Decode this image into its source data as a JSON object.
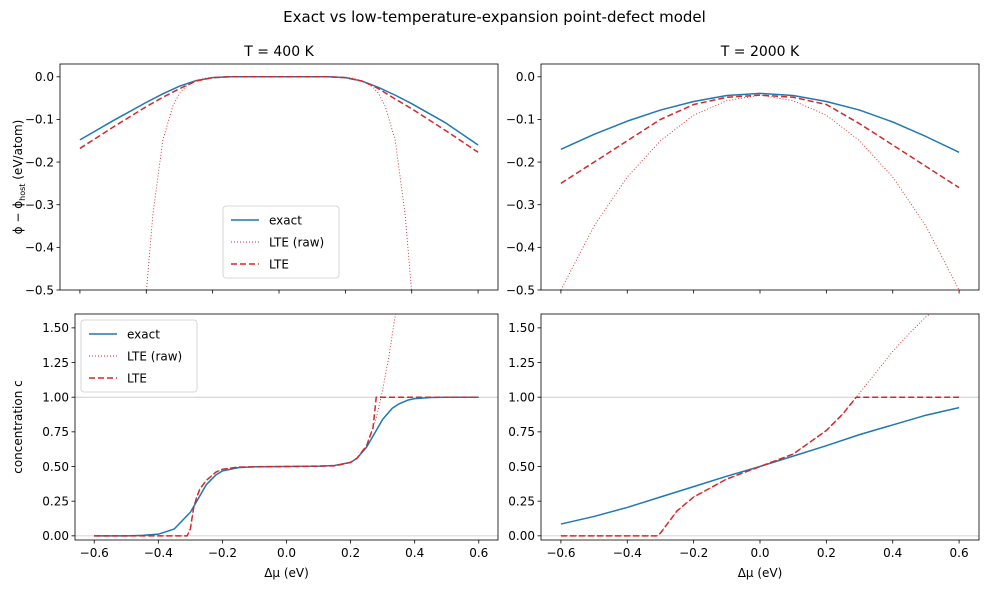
{
  "figure": {
    "suptitle": "Exact vs low-temperature-expansion point-defect model"
  },
  "chart_data": [
    {
      "type": "line",
      "panel": "top-left",
      "title": "T = 400 K",
      "xlabel": "",
      "ylabel": "ϕ − ϕhost (eV/atom)",
      "ylabel_parts": {
        "main": "ϕ − ϕ",
        "sub": "host",
        "unit": " (eV/atom)"
      },
      "xlim": [
        -0.66,
        0.66
      ],
      "ylim": [
        -0.5,
        0.03
      ],
      "xticks": [
        -0.6,
        -0.4,
        -0.2,
        0.0,
        0.2,
        0.4,
        0.6
      ],
      "xtick_labels": [],
      "yticks": [
        -0.5,
        -0.4,
        -0.3,
        -0.2,
        -0.1,
        0.0
      ],
      "ytick_labels": [
        "−0.5",
        "−0.4",
        "−0.3",
        "−0.2",
        "−0.1",
        "0.0"
      ],
      "hlines": [],
      "legend": {
        "placement": "lower center",
        "entries": [
          "exact",
          "LTE (raw)",
          "LTE"
        ]
      },
      "series": [
        {
          "name": "exact",
          "color": "#1f77b4",
          "style": "solid",
          "x": [
            -0.6,
            -0.5,
            -0.4,
            -0.35,
            -0.3,
            -0.25,
            -0.2,
            -0.15,
            0.0,
            0.15,
            0.2,
            0.25,
            0.3,
            0.35,
            0.4,
            0.5,
            0.6
          ],
          "y": [
            -0.148,
            -0.103,
            -0.06,
            -0.04,
            -0.022,
            -0.009,
            -0.002,
            0.0,
            0.0,
            0.0,
            -0.002,
            -0.01,
            -0.025,
            -0.043,
            -0.063,
            -0.107,
            -0.16
          ]
        },
        {
          "name": "LTE (raw)",
          "color": "#d62728",
          "style": "dotted",
          "x": [
            -0.3993,
            -0.38,
            -0.35,
            -0.32,
            -0.3,
            -0.28,
            -0.25,
            -0.22,
            -0.2,
            0.0,
            0.2,
            0.22,
            0.25,
            0.28,
            0.3,
            0.32,
            0.35,
            0.38,
            0.3993
          ],
          "y": [
            -0.5,
            -0.322,
            -0.148,
            -0.069,
            -0.039,
            -0.022,
            -0.009,
            -0.003,
            -0.001,
            0.0,
            -0.001,
            -0.003,
            -0.009,
            -0.022,
            -0.039,
            -0.069,
            -0.148,
            -0.322,
            -0.5
          ]
        },
        {
          "name": "LTE",
          "color": "#d62728",
          "style": "dashed",
          "x": [
            -0.6,
            -0.5,
            -0.4,
            -0.35,
            -0.3,
            -0.25,
            -0.2,
            -0.15,
            0.0,
            0.15,
            0.2,
            0.25,
            0.28,
            0.3,
            0.35,
            0.4,
            0.5,
            0.6
          ],
          "y": [
            -0.168,
            -0.118,
            -0.07,
            -0.048,
            -0.028,
            -0.01,
            -0.002,
            0.0,
            0.0,
            0.0,
            -0.002,
            -0.01,
            -0.02,
            -0.028,
            -0.052,
            -0.075,
            -0.125,
            -0.177
          ]
        }
      ]
    },
    {
      "type": "line",
      "panel": "top-right",
      "title": "T = 2000 K",
      "xlabel": "",
      "ylabel": "",
      "xlim": [
        -0.66,
        0.66
      ],
      "ylim": [
        -0.5,
        0.03
      ],
      "xticks": [
        -0.6,
        -0.4,
        -0.2,
        0.0,
        0.2,
        0.4,
        0.6
      ],
      "xtick_labels": [],
      "yticks": [
        -0.5,
        -0.4,
        -0.3,
        -0.2,
        -0.1,
        0.0
      ],
      "ytick_labels": [
        "−0.5",
        "−0.4",
        "−0.3",
        "−0.2",
        "−0.1",
        "0.0"
      ],
      "hlines": [],
      "legend": null,
      "series": [
        {
          "name": "exact",
          "color": "#1f77b4",
          "style": "solid",
          "x": [
            -0.6,
            -0.5,
            -0.4,
            -0.3,
            -0.2,
            -0.1,
            0.0,
            0.1,
            0.2,
            0.3,
            0.4,
            0.5,
            0.6
          ],
          "y": [
            -0.17,
            -0.135,
            -0.104,
            -0.078,
            -0.058,
            -0.044,
            -0.039,
            -0.044,
            -0.058,
            -0.078,
            -0.106,
            -0.14,
            -0.177
          ]
        },
        {
          "name": "LTE (raw)",
          "color": "#d62728",
          "style": "dotted",
          "x": [
            -0.6,
            -0.5,
            -0.4,
            -0.3,
            -0.2,
            -0.1,
            0.0,
            0.1,
            0.2,
            0.3,
            0.4,
            0.5,
            0.6
          ],
          "y": [
            -0.5,
            -0.35,
            -0.235,
            -0.15,
            -0.09,
            -0.056,
            -0.043,
            -0.056,
            -0.09,
            -0.15,
            -0.235,
            -0.35,
            -0.5
          ]
        },
        {
          "name": "LTE",
          "color": "#d62728",
          "style": "dashed",
          "x": [
            -0.6,
            -0.5,
            -0.4,
            -0.3,
            -0.2,
            -0.1,
            0.0,
            0.1,
            0.2,
            0.3,
            0.4,
            0.5,
            0.6
          ],
          "y": [
            -0.25,
            -0.2,
            -0.15,
            -0.1,
            -0.065,
            -0.048,
            -0.043,
            -0.048,
            -0.065,
            -0.11,
            -0.16,
            -0.21,
            -0.26
          ]
        }
      ]
    },
    {
      "type": "line",
      "panel": "bottom-left",
      "title": "",
      "xlabel": "Δμ (eV)",
      "ylabel": "concentration c",
      "xlim": [
        -0.66,
        0.66
      ],
      "ylim": [
        -0.03,
        1.6
      ],
      "xticks": [
        -0.6,
        -0.4,
        -0.2,
        0.0,
        0.2,
        0.4,
        0.6
      ],
      "xtick_labels": [
        "−0.6",
        "−0.4",
        "−0.2",
        "0.0",
        "0.2",
        "0.4",
        "0.6"
      ],
      "yticks": [
        0.0,
        0.25,
        0.5,
        0.75,
        1.0,
        1.25,
        1.5
      ],
      "ytick_labels": [
        "0.00",
        "0.25",
        "0.50",
        "0.75",
        "1.00",
        "1.25",
        "1.50"
      ],
      "hlines": [
        0.0,
        1.0
      ],
      "legend": {
        "placement": "upper left",
        "entries": [
          "exact",
          "LTE (raw)",
          "LTE"
        ]
      },
      "series": [
        {
          "name": "exact",
          "color": "#1f77b4",
          "style": "solid",
          "x": [
            -0.6,
            -0.5,
            -0.45,
            -0.4,
            -0.35,
            -0.3,
            -0.27,
            -0.25,
            -0.22,
            -0.2,
            -0.15,
            -0.1,
            0.0,
            0.1,
            0.15,
            0.2,
            0.22,
            0.25,
            0.28,
            0.3,
            0.33,
            0.35,
            0.38,
            0.4,
            0.45,
            0.5,
            0.6
          ],
          "y": [
            0.0,
            0.0,
            0.003,
            0.012,
            0.05,
            0.17,
            0.29,
            0.37,
            0.44,
            0.468,
            0.492,
            0.498,
            0.5,
            0.502,
            0.507,
            0.53,
            0.56,
            0.64,
            0.76,
            0.84,
            0.92,
            0.95,
            0.98,
            0.99,
            0.998,
            1.0,
            1.0
          ]
        },
        {
          "name": "LTE (raw)",
          "color": "#d62728",
          "style": "dotted",
          "x": [
            -0.6,
            -0.31,
            -0.3,
            -0.29,
            -0.28,
            -0.27,
            -0.25,
            -0.22,
            -0.2,
            -0.15,
            0.0,
            0.15,
            0.2,
            0.22,
            0.25,
            0.28,
            0.3,
            0.31,
            0.32,
            0.33,
            0.34
          ],
          "y": [
            0.0,
            0.0,
            0.05,
            0.2,
            0.28,
            0.34,
            0.4,
            0.46,
            0.48,
            0.496,
            0.5,
            0.505,
            0.53,
            0.56,
            0.65,
            0.85,
            1.05,
            1.18,
            1.3,
            1.45,
            1.6
          ]
        },
        {
          "name": "LTE",
          "color": "#d62728",
          "style": "dashed",
          "x": [
            -0.6,
            -0.31,
            -0.3,
            -0.29,
            -0.28,
            -0.27,
            -0.25,
            -0.22,
            -0.2,
            -0.15,
            0.0,
            0.15,
            0.2,
            0.22,
            0.25,
            0.27,
            0.28,
            0.29,
            0.6
          ],
          "y": [
            0.0,
            0.0,
            0.05,
            0.2,
            0.28,
            0.34,
            0.4,
            0.46,
            0.48,
            0.496,
            0.5,
            0.505,
            0.53,
            0.56,
            0.65,
            0.78,
            1.0,
            1.0,
            1.0
          ]
        }
      ]
    },
    {
      "type": "line",
      "panel": "bottom-right",
      "title": "",
      "xlabel": "Δμ (eV)",
      "ylabel": "",
      "xlim": [
        -0.66,
        0.66
      ],
      "ylim": [
        -0.03,
        1.6
      ],
      "xticks": [
        -0.6,
        -0.4,
        -0.2,
        0.0,
        0.2,
        0.4,
        0.6
      ],
      "xtick_labels": [
        "−0.6",
        "−0.4",
        "−0.2",
        "0.0",
        "0.2",
        "0.4",
        "0.6"
      ],
      "yticks": [
        0.0,
        0.25,
        0.5,
        0.75,
        1.0,
        1.25,
        1.5
      ],
      "ytick_labels": [
        "0.00",
        "0.25",
        "0.50",
        "0.75",
        "1.00",
        "1.25",
        "1.50"
      ],
      "hlines": [
        0.0,
        1.0
      ],
      "legend": null,
      "series": [
        {
          "name": "exact",
          "color": "#1f77b4",
          "style": "solid",
          "x": [
            -0.6,
            -0.5,
            -0.4,
            -0.3,
            -0.2,
            -0.1,
            0.0,
            0.1,
            0.2,
            0.3,
            0.4,
            0.5,
            0.6
          ],
          "y": [
            0.085,
            0.14,
            0.205,
            0.28,
            0.355,
            0.43,
            0.5,
            0.575,
            0.65,
            0.73,
            0.8,
            0.87,
            0.925
          ]
        },
        {
          "name": "LTE (raw)",
          "color": "#d62728",
          "style": "dotted",
          "x": [
            -0.6,
            -0.31,
            -0.3,
            -0.25,
            -0.2,
            -0.1,
            0.0,
            0.1,
            0.2,
            0.25,
            0.3,
            0.35,
            0.4,
            0.45,
            0.5,
            0.525
          ],
          "y": [
            0.0,
            0.0,
            0.02,
            0.18,
            0.28,
            0.41,
            0.5,
            0.59,
            0.76,
            0.88,
            1.03,
            1.18,
            1.33,
            1.46,
            1.58,
            1.62
          ]
        },
        {
          "name": "LTE",
          "color": "#d62728",
          "style": "dashed",
          "x": [
            -0.6,
            -0.31,
            -0.3,
            -0.25,
            -0.2,
            -0.1,
            0.0,
            0.1,
            0.2,
            0.25,
            0.28,
            0.29,
            0.6
          ],
          "y": [
            0.0,
            0.0,
            0.02,
            0.18,
            0.28,
            0.41,
            0.5,
            0.59,
            0.76,
            0.88,
            0.97,
            1.0,
            1.0
          ]
        }
      ]
    }
  ]
}
